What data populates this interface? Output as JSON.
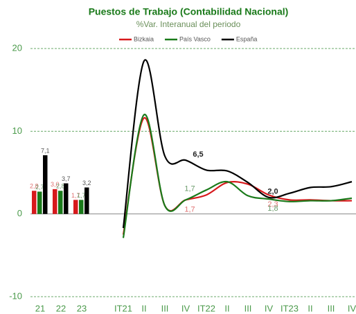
{
  "chart_data": [
    {
      "type": "bar",
      "title": "Puestos de Trabajo (Contabilidad Nacional)",
      "subtitle": "%Var. Interanual del periodo",
      "categories": [
        "21",
        "22",
        "23"
      ],
      "series": [
        {
          "name": "Bizkaia",
          "color": "#d7191c",
          "values": [
            2.8,
            3.0,
            1.7
          ],
          "value_labels": [
            "2,8",
            "3,0",
            "1,7"
          ]
        },
        {
          "name": "País Vasco",
          "color": "#1a7a1a",
          "values": [
            2.7,
            2.8,
            1.7
          ],
          "value_labels": [
            "2,7",
            "2,8",
            "1,7"
          ]
        },
        {
          "name": "España",
          "color": "#000000",
          "values": [
            7.1,
            3.7,
            3.2
          ],
          "value_labels": [
            "7,1",
            "3,7",
            "3,2"
          ]
        }
      ],
      "ylim": [
        -10,
        20
      ],
      "yticks": [
        -10,
        0,
        10,
        20
      ],
      "grid": true
    },
    {
      "type": "line",
      "categories": [
        "IT21",
        "II",
        "III",
        "IV",
        "IT22",
        "II",
        "III",
        "IV",
        "IT23",
        "II",
        "III",
        "IV"
      ],
      "series": [
        {
          "color": "#d7191c",
          "values": [
            -2.5,
            11.6,
            1.0,
            1.7,
            2.3,
            3.8,
            3.6,
            2.3,
            1.7,
            1.7,
            1.6,
            1.6
          ],
          "value_labels": [
            null,
            null,
            null,
            "1,7",
            null,
            null,
            null,
            "2,3",
            null,
            null,
            null,
            null
          ]
        },
        {
          "color": "#1a7a1a",
          "values": [
            -2.9,
            12.0,
            1.0,
            1.7,
            2.9,
            3.9,
            2.2,
            1.8,
            1.5,
            1.6,
            1.6,
            1.9
          ],
          "value_labels": [
            null,
            null,
            null,
            "1,7",
            null,
            null,
            null,
            "1,8",
            null,
            null,
            null,
            null
          ]
        },
        {
          "color": "#000000",
          "values": [
            -1.7,
            18.5,
            7.0,
            6.5,
            5.3,
            5.2,
            3.8,
            2.0,
            2.5,
            3.2,
            3.3,
            3.9
          ],
          "value_labels": [
            null,
            null,
            null,
            "6,5",
            null,
            null,
            null,
            "2,0",
            null,
            null,
            null,
            null
          ]
        }
      ],
      "ylim": [
        -10,
        20
      ]
    }
  ]
}
